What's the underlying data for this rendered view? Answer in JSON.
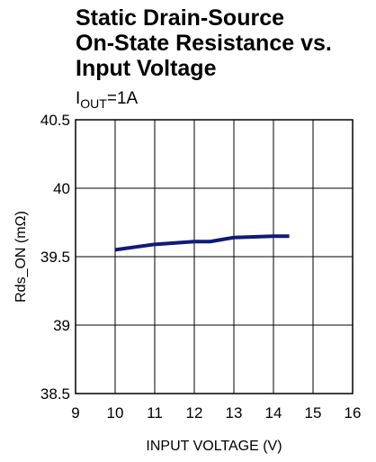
{
  "chart_data": {
    "type": "line",
    "title": [
      "Static Drain-Source",
      "On-State Resistance vs.",
      "Input Voltage"
    ],
    "subtitle": [
      "I",
      "OUT",
      "=1A"
    ],
    "x_label": "INPUT VOLTAGE (V)",
    "y_label": "Rds_ON (mΩ)",
    "xlim": [
      9,
      16
    ],
    "xticks": [
      9,
      10,
      11,
      12,
      13,
      14,
      15,
      16
    ],
    "ylim": [
      38.5,
      40.5
    ],
    "yticks": [
      38.5,
      39,
      39.5,
      40,
      40.5
    ],
    "grid": true,
    "series": [
      {
        "color": "#111a78",
        "x": [
          10,
          11,
          12,
          12.4,
          13,
          14,
          14.4
        ],
        "values": [
          39.55,
          39.59,
          39.61,
          39.61,
          39.64,
          39.65,
          39.65
        ]
      }
    ]
  }
}
